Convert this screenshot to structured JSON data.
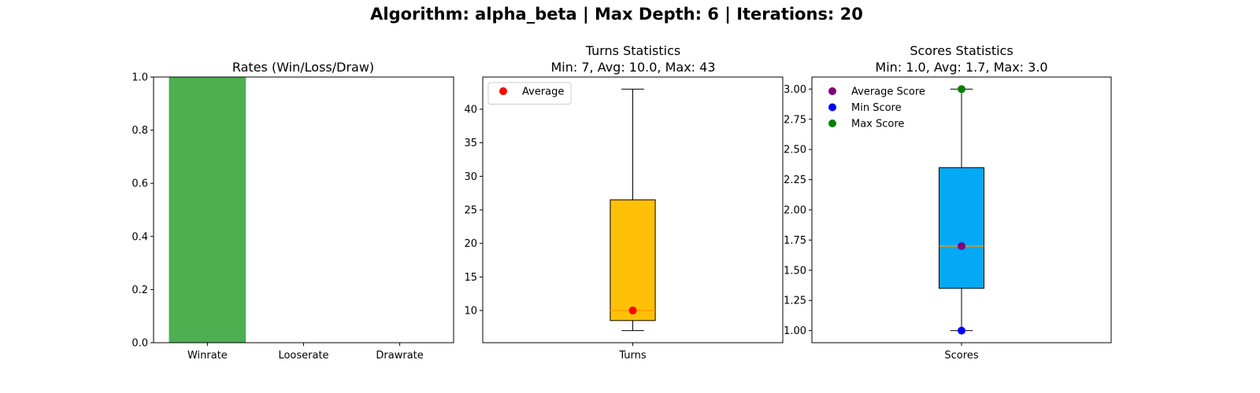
{
  "figure": {
    "suptitle": "Algorithm: alpha_beta | Max Depth: 6 | Iterations: 20"
  },
  "chart_data": [
    {
      "type": "bar",
      "title": "Rates (Win/Loss/Draw)",
      "categories": [
        "Winrate",
        "Looserate",
        "Drawrate"
      ],
      "values": [
        1.0,
        0.0,
        0.0
      ],
      "ylim": [
        0,
        1
      ],
      "yticks": [
        0.0,
        0.2,
        0.4,
        0.6,
        0.8,
        1.0
      ],
      "ytick_labels": [
        "0.0",
        "0.2",
        "0.4",
        "0.6",
        "0.8",
        "1.0"
      ],
      "bar_color": "#4caf50",
      "grid": false
    },
    {
      "type": "boxplot",
      "title": "Turns Statistics",
      "subtitle": "Min: 7, Avg: 10.0, Max: 43",
      "category": "Turns",
      "box": {
        "whisker_low": 7,
        "q1": 8.5,
        "median": 10,
        "q3": 26.5,
        "whisker_high": 43
      },
      "box_color": "#ffc107",
      "median_color": "#ff9800",
      "points": [
        {
          "name": "Average",
          "value": 10.0,
          "color": "#ff0000"
        }
      ],
      "ylim": [
        5.2,
        44.8
      ],
      "yticks": [
        10,
        15,
        20,
        25,
        30,
        35,
        40
      ],
      "ytick_labels": [
        "10",
        "15",
        "20",
        "25",
        "30",
        "35",
        "40"
      ],
      "legend": {
        "position": "top-left",
        "entries": [
          "Average"
        ]
      },
      "grid": false
    },
    {
      "type": "boxplot",
      "title": "Scores Statistics",
      "subtitle": "Min: 1.0, Avg: 1.7, Max: 3.0",
      "category": "Scores",
      "box": {
        "whisker_low": 1.0,
        "q1": 1.35,
        "median": 1.7,
        "q3": 2.35,
        "whisker_high": 3.0
      },
      "box_color": "#03a9f4",
      "median_color": "#ff9800",
      "points": [
        {
          "name": "Average Score",
          "value": 1.7,
          "color": "#800080"
        },
        {
          "name": "Min Score",
          "value": 1.0,
          "color": "#0000ff"
        },
        {
          "name": "Max Score",
          "value": 3.0,
          "color": "#008000"
        }
      ],
      "ylim": [
        0.9,
        3.1
      ],
      "yticks": [
        1.0,
        1.25,
        1.5,
        1.75,
        2.0,
        2.25,
        2.5,
        2.75,
        3.0
      ],
      "ytick_labels": [
        "1.00",
        "1.25",
        "1.50",
        "1.75",
        "2.00",
        "2.25",
        "2.50",
        "2.75",
        "3.00"
      ],
      "legend": {
        "position": "top-left",
        "entries": [
          "Average Score",
          "Min Score",
          "Max Score"
        ]
      },
      "grid": false
    }
  ]
}
